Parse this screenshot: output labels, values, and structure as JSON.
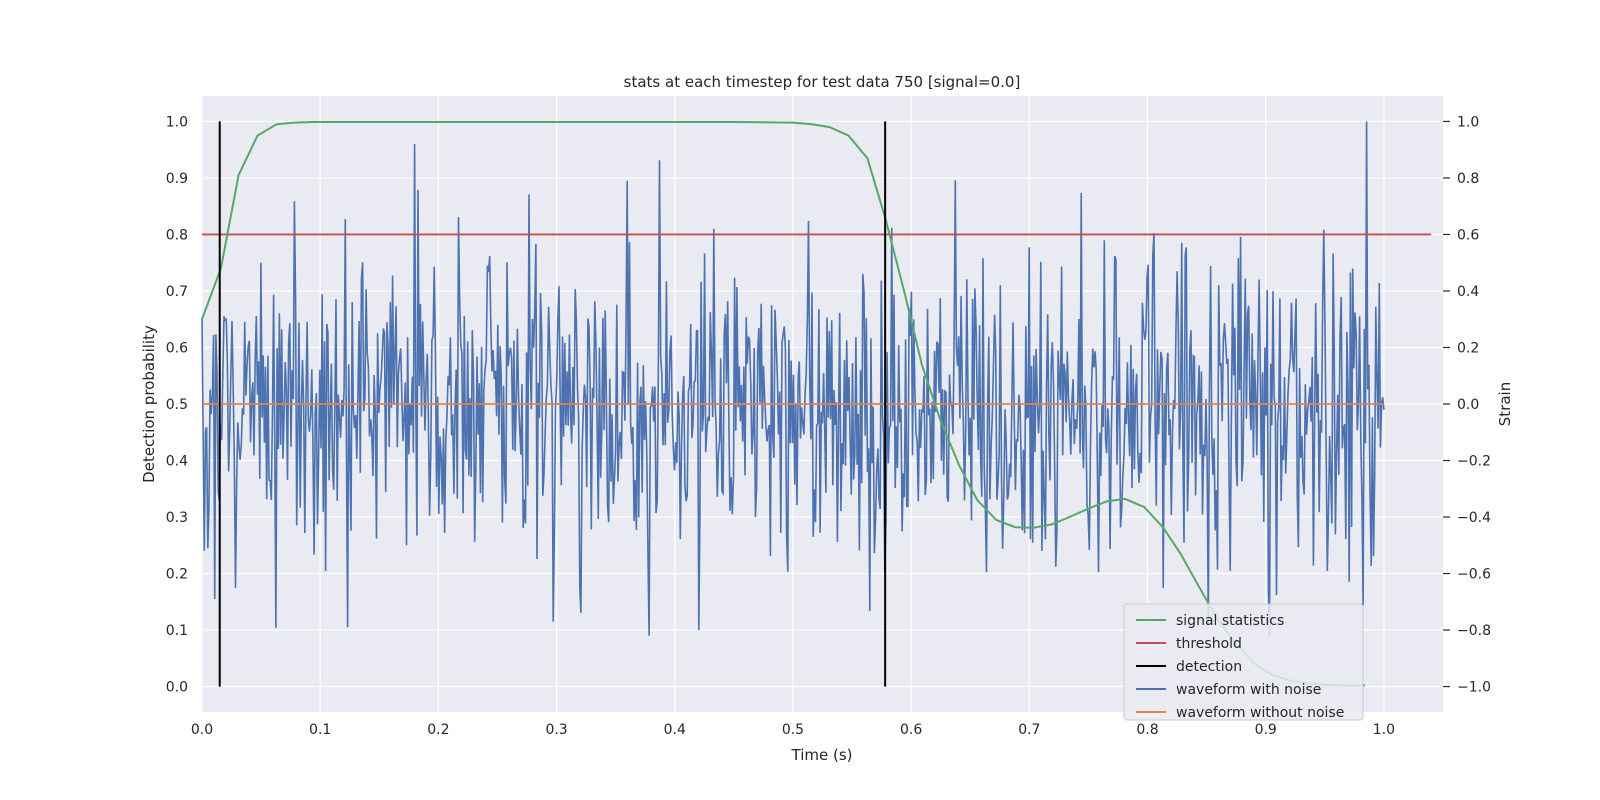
{
  "chart_data": {
    "type": "line",
    "title": "stats at each timestep for test data 750 [signal=0.0]",
    "xlabel": "Time (s)",
    "ylabel": "Detection probability",
    "y2label": "Strain",
    "xlim": [
      0.0,
      1.05
    ],
    "ylim": [
      -0.045,
      1.045
    ],
    "y2lim": [
      -1.09,
      1.09
    ],
    "grid": true,
    "legend_position": "lower-right",
    "x_ticks": [
      0.0,
      0.1,
      0.2,
      0.3,
      0.4,
      0.5,
      0.6,
      0.7,
      0.8,
      0.9,
      1.0
    ],
    "x_tick_labels": [
      "0.0",
      "0.1",
      "0.2",
      "0.3",
      "0.4",
      "0.5",
      "0.6",
      "0.7",
      "0.8",
      "0.9",
      "1.0"
    ],
    "y_ticks": [
      0.0,
      0.1,
      0.2,
      0.3,
      0.4,
      0.5,
      0.6,
      0.7,
      0.8,
      0.9,
      1.0
    ],
    "y_tick_labels": [
      "0.0",
      "0.1",
      "0.2",
      "0.3",
      "0.4",
      "0.5",
      "0.6",
      "0.7",
      "0.8",
      "0.9",
      "1.0"
    ],
    "y2_ticks": [
      -1.0,
      -0.8,
      -0.6,
      -0.4,
      -0.2,
      0.0,
      0.2,
      0.4,
      0.6,
      0.8,
      1.0
    ],
    "y2_tick_labels": [
      "−1.0",
      "−0.8",
      "−0.6",
      "−0.4",
      "−0.2",
      "0.0",
      "0.2",
      "0.4",
      "0.6",
      "0.8",
      "1.0"
    ],
    "series": [
      {
        "name": "signal statistics",
        "color": "#55a868",
        "axis": "left",
        "x": [
          0.0,
          0.016,
          0.031,
          0.047,
          0.063,
          0.078,
          0.094,
          0.125,
          0.25,
          0.375,
          0.45,
          0.5,
          0.516,
          0.531,
          0.547,
          0.563,
          0.578,
          0.594,
          0.609,
          0.625,
          0.641,
          0.656,
          0.672,
          0.688,
          0.703,
          0.719,
          0.734,
          0.75,
          0.766,
          0.781,
          0.797,
          0.813,
          0.828,
          0.844,
          0.859,
          0.875,
          0.891,
          0.906,
          0.922,
          0.938,
          0.953,
          0.969,
          0.984
        ],
        "y": [
          0.65,
          0.74,
          0.905,
          0.975,
          0.995,
          0.998,
          0.999,
          0.999,
          0.999,
          0.999,
          0.999,
          0.998,
          0.995,
          0.99,
          0.975,
          0.935,
          0.83,
          0.7,
          0.57,
          0.47,
          0.39,
          0.33,
          0.295,
          0.282,
          0.281,
          0.287,
          0.3,
          0.315,
          0.328,
          0.332,
          0.318,
          0.282,
          0.235,
          0.175,
          0.12,
          0.075,
          0.04,
          0.02,
          0.01,
          0.005,
          0.003,
          0.002,
          0.002
        ]
      },
      {
        "name": "threshold",
        "color": "#c44e52",
        "axis": "left",
        "x": [
          0.0,
          1.04
        ],
        "y": [
          0.8,
          0.8
        ]
      },
      {
        "name": "detection",
        "color": "#000000",
        "axis": "left",
        "segments": [
          {
            "x": 0.015,
            "y": [
              0.0,
              1.0
            ]
          },
          {
            "x": 0.578,
            "y": [
              0.0,
              1.0
            ]
          }
        ]
      },
      {
        "name": "waveform with noise",
        "color": "#4c72b0",
        "axis": "right",
        "x_start": 0.0,
        "x_end": 1.0,
        "n_points": 1024,
        "approx_std": 0.27,
        "approx_range": [
          -0.82,
          1.0
        ],
        "highlighted_peaks": [
          {
            "x": 0.18,
            "y": 0.92
          },
          {
            "x": 0.985,
            "y": 1.0
          },
          {
            "x": 0.36,
            "y": 0.79
          },
          {
            "x": 0.297,
            "y": -0.77
          },
          {
            "x": 0.123,
            "y": -0.79
          },
          {
            "x": 0.42,
            "y": -0.8
          }
        ]
      },
      {
        "name": "waveform without noise",
        "color": "#dd8452",
        "axis": "right",
        "x": [
          0.0,
          1.0
        ],
        "y": [
          0.0,
          0.0
        ]
      }
    ]
  }
}
